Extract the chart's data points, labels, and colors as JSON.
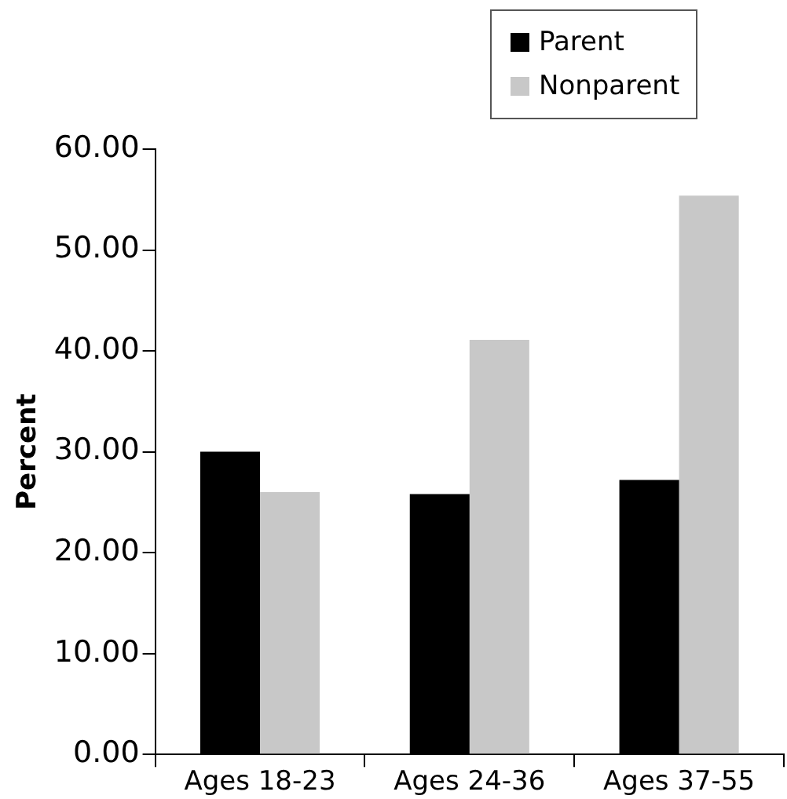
{
  "chart_data": {
    "type": "bar",
    "ylabel": "Percent",
    "categories": [
      "Ages 18-23",
      "Ages 24-36",
      "Ages 37-55"
    ],
    "series": [
      {
        "name": "Parent",
        "color": "#000000",
        "values": [
          30.0,
          25.8,
          27.2
        ]
      },
      {
        "name": "Nonparent",
        "color": "#c8c8c8",
        "values": [
          26.0,
          41.1,
          55.4
        ]
      }
    ],
    "ylim": [
      0,
      60
    ],
    "yticks": [
      {
        "value": 0,
        "label": "0.00"
      },
      {
        "value": 10,
        "label": "10.00"
      },
      {
        "value": 20,
        "label": "20.00"
      },
      {
        "value": 30,
        "label": "30.00"
      },
      {
        "value": 40,
        "label": "40.00"
      },
      {
        "value": 50,
        "label": "50.00"
      },
      {
        "value": 60,
        "label": "60.00"
      }
    ],
    "grid": false,
    "legend": "top right"
  }
}
